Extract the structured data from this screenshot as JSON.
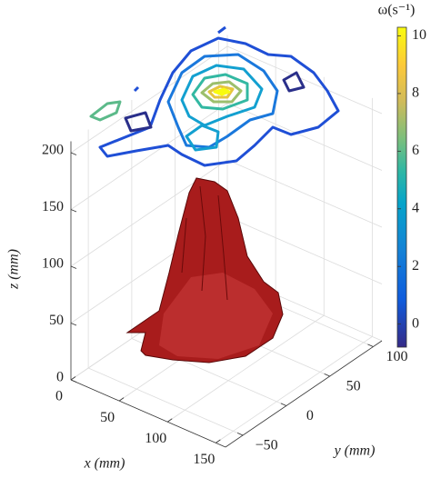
{
  "chart_data": {
    "type": "surface3d",
    "xlabel": "x (mm)",
    "ylabel": "y (mm)",
    "zlabel": "z (mm)",
    "xlim": [
      0,
      160
    ],
    "xticks": [
      0,
      50,
      100,
      150
    ],
    "ylim": [
      -70,
      110
    ],
    "yticks": [
      {
        "value": -50,
        "label": "−50"
      },
      0,
      50,
      100
    ],
    "zlim": [
      0,
      210
    ],
    "zticks": [
      0,
      50,
      100,
      150,
      200
    ],
    "grid": true,
    "colorbar": {
      "label": "ω(s⁻¹)",
      "clim": [
        -0.8,
        10.3
      ],
      "ticks": [
        0,
        2,
        4,
        6,
        8,
        10
      ],
      "colormap": "parula"
    },
    "surface_color": "#a81c1c"
  }
}
